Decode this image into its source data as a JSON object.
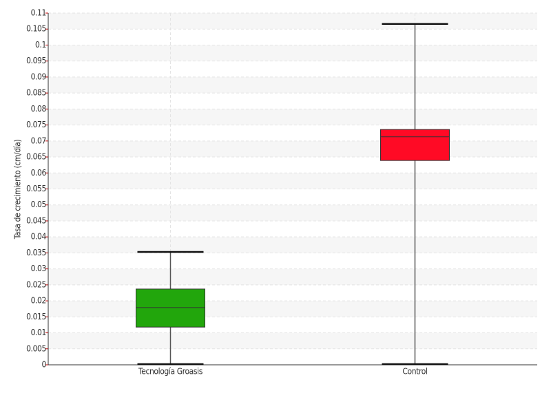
{
  "chart_data": {
    "type": "box",
    "y_label": "Tasa de crecimiento (cm/día)",
    "categories": [
      "Tecnología Groasis",
      "Control"
    ],
    "boxes": [
      {
        "min": 0,
        "q1": 0.0118,
        "median": 0.0179,
        "q3": 0.0237,
        "max": 0.0353,
        "color": "#22a60c"
      },
      {
        "min": 0,
        "q1": 0.0639,
        "median": 0.0713,
        "q3": 0.0736,
        "max": 0.1066,
        "color": "#ff0a25"
      }
    ],
    "ylim": [
      0,
      0.11
    ],
    "yticks": [
      0,
      0.005,
      0.01,
      0.015,
      0.02,
      0.025,
      0.03,
      0.035,
      0.04,
      0.045,
      0.05,
      0.055,
      0.06,
      0.065,
      0.07,
      0.075,
      0.08,
      0.085,
      0.09,
      0.095,
      0.1,
      0.105,
      0.11
    ],
    "grid": true
  }
}
